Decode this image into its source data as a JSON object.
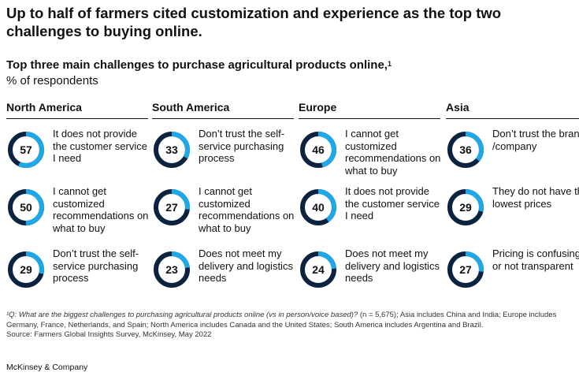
{
  "headline": "Up to half of farmers cited customization and experience as the top two challenges to buying online.",
  "subtitle": "Top three main challenges to purchase agricultural products online,",
  "subtitle_footnote_mark": "1",
  "units": "% of respondents",
  "colors": {
    "ring_fill": "#1ea8e8",
    "ring_track": "#0c2340",
    "text": "#111111"
  },
  "chart_data": {
    "type": "donut-grid",
    "title": "Top three main challenges to purchase agricultural products online",
    "unit": "% of respondents",
    "regions": [
      {
        "name": "North America",
        "items": [
          {
            "value": 57,
            "label": "It does not provide the customer service I need"
          },
          {
            "value": 50,
            "label": "I cannot get customized recommendations on what to buy"
          },
          {
            "value": 29,
            "label": "Don’t trust the self-service purchasing process"
          }
        ]
      },
      {
        "name": "South America",
        "items": [
          {
            "value": 33,
            "label": "Don’t trust the self-service purchasing process"
          },
          {
            "value": 27,
            "label": "I cannot get customized recommendations on what to buy"
          },
          {
            "value": 23,
            "label": "Does not meet my delivery and logistics needs"
          }
        ]
      },
      {
        "name": "Europe",
        "items": [
          {
            "value": 46,
            "label": "I cannot get customized recommendations on what to buy"
          },
          {
            "value": 40,
            "label": "It does not provide the customer service I need"
          },
          {
            "value": 24,
            "label": "Does not meet my delivery and logistics needs"
          }
        ]
      },
      {
        "name": "Asia",
        "items": [
          {
            "value": 36,
            "label": "Don’t trust the brand /company"
          },
          {
            "value": 29,
            "label": "They do not have the lowest prices"
          },
          {
            "value": 27,
            "label": "Pricing is confusing or not transparent"
          }
        ]
      }
    ]
  },
  "footnote": {
    "question": "¹Q: What are the biggest challenges to purchasing agricultural products online (vs in person/voice based)?",
    "details": " (n = 5,675); Asia includes China and India; Europe includes Germany, France, Netherlands, and Spain; North America includes Canada and the United States; South America includes Argentina and Brazil.",
    "source": "Source: Farmers Global Insights Survey, McKinsey, May 2022"
  },
  "brand": "McKinsey & Company"
}
